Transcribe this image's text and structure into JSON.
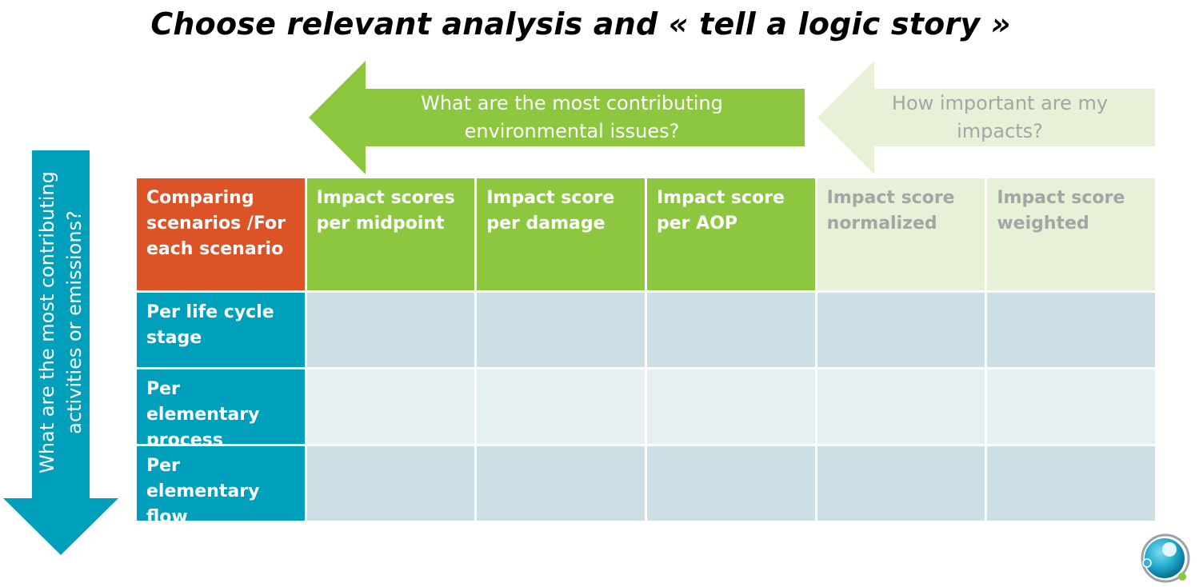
{
  "title": "Choose relevant analysis and « tell a logic story »",
  "top_arrows": {
    "green": {
      "text": "What are the most contributing environmental issues?",
      "color": "#8dc63f"
    },
    "light": {
      "text": "How important are my impacts?",
      "color": "#e6f1d8"
    }
  },
  "side_arrow": {
    "text": "What are the most contributing activities or emissions?",
    "color": "#00a0bc"
  },
  "matrix": {
    "corner": "Comparing scenarios /For each scenario",
    "columns": [
      {
        "label": "Impact scores per midpoint",
        "emphasis": "active"
      },
      {
        "label": "Impact score per damage",
        "emphasis": "active"
      },
      {
        "label": "Impact score per AOP",
        "emphasis": "active"
      },
      {
        "label": "Impact score normalized",
        "emphasis": "muted"
      },
      {
        "label": "Impact score weighted",
        "emphasis": "muted"
      }
    ],
    "rows": [
      {
        "label": "Per life cycle stage"
      },
      {
        "label": "Per elementary process"
      },
      {
        "label": "Per elementary flow"
      }
    ]
  },
  "colors": {
    "corner": "#dc5327",
    "active_header": "#8dc63f",
    "muted_header": "#e6f1d8",
    "row_header": "#00a0bc",
    "cell_a": "#cbdfe5",
    "cell_b": "#e6eff2"
  },
  "logo_icon": "circular-sphere-logo-icon"
}
